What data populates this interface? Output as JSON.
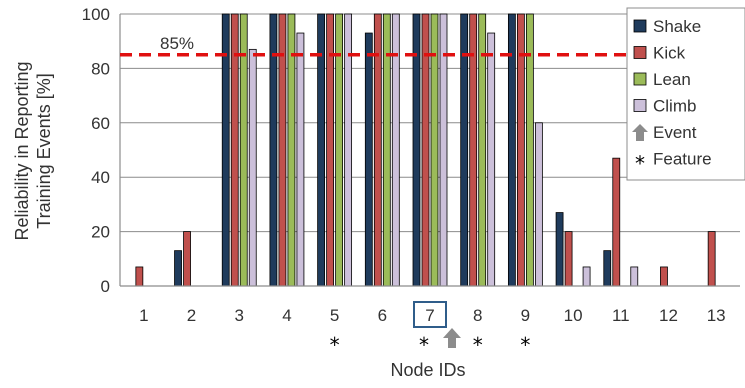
{
  "chart_data": {
    "type": "bar",
    "categories": [
      "1",
      "2",
      "3",
      "4",
      "5",
      "6",
      "7",
      "8",
      "9",
      "10",
      "11",
      "12",
      "13"
    ],
    "series": [
      {
        "name": "Shake",
        "color": "#1f3b5c",
        "values": [
          0,
          13,
          100,
          100,
          100,
          93,
          100,
          100,
          100,
          27,
          13,
          0,
          0
        ]
      },
      {
        "name": "Kick",
        "color": "#c0504d",
        "values": [
          7,
          20,
          100,
          100,
          100,
          100,
          100,
          100,
          100,
          20,
          47,
          7,
          20
        ]
      },
      {
        "name": "Lean",
        "color": "#9bbb59",
        "values": [
          0,
          0,
          100,
          100,
          100,
          100,
          100,
          100,
          100,
          0,
          0,
          0,
          0
        ]
      },
      {
        "name": "Climb",
        "color": "#ccc0da",
        "values": [
          0,
          0,
          87,
          93,
          100,
          100,
          100,
          93,
          60,
          7,
          7,
          0,
          0
        ]
      }
    ],
    "xlabel": "Node IDs",
    "ylabel_lines": [
      "Reliability in Reporting",
      "Training Events [%]"
    ],
    "ylim": [
      0,
      100
    ],
    "yticks": [
      "0",
      "20",
      "40",
      "60",
      "80",
      "100"
    ],
    "grid": true,
    "threshold": {
      "value": 85,
      "label": "85%",
      "color": "#e01010"
    },
    "feature_nodes": [
      "5",
      "7",
      "8",
      "9"
    ],
    "event_node": "7",
    "highlight_node": "7",
    "legend": {
      "position": "top-right",
      "extra_items": [
        {
          "name": "Event",
          "symbol": "arrow-up-icon"
        },
        {
          "name": "Feature",
          "symbol": "*"
        }
      ]
    }
  }
}
